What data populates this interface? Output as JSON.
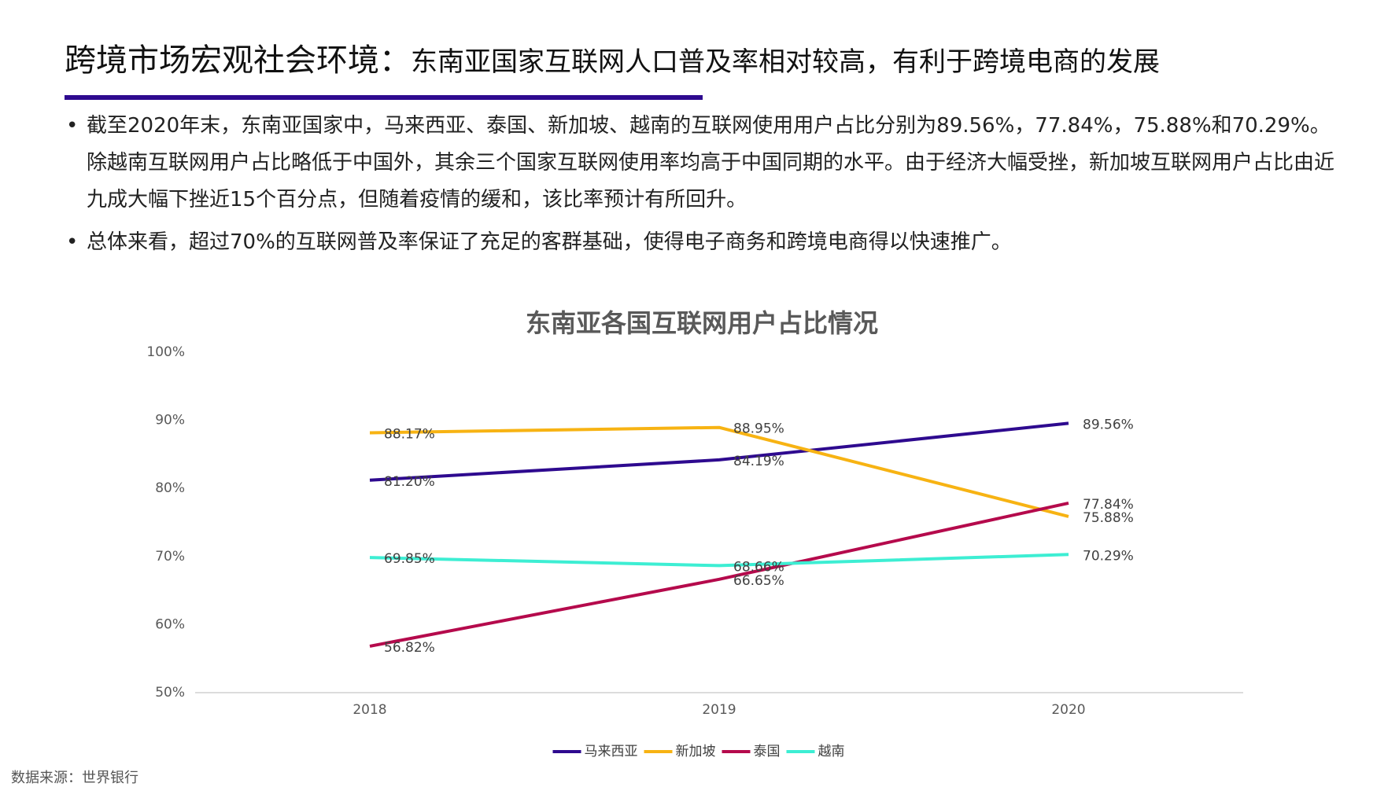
{
  "header": {
    "title_main": "跨境市场宏观社会环境：",
    "title_sub": "东南亚国家互联网人口普及率相对较高，有利于跨境电商的发展"
  },
  "bullets": [
    "截至2020年末，东南亚国家中，马来西亚、泰国、新加坡、越南的互联网使用用户占比分别为89.56%，77.84%，75.88%和70.29%。除越南互联网用户占比略低于中国外，其余三个国家互联网使用率均高于中国同期的水平。由于经济大幅受挫，新加坡互联网用户占比由近九成大幅下挫近15个百分点，但随着疫情的缓和，该比率预计有所回升。",
    "总体来看，超过70%的互联网普及率保证了充足的客群基础，使得电子商务和跨境电商得以快速推广。"
  ],
  "chart_data": {
    "type": "line",
    "title": "东南亚各国互联网用户占比情况",
    "categories": [
      "2018",
      "2019",
      "2020"
    ],
    "series": [
      {
        "name": "马来西亚",
        "color": "#2e0a8f",
        "values": [
          81.2,
          84.19,
          89.56
        ],
        "value_labels": [
          "81.20%",
          "84.19%",
          "89.56%"
        ]
      },
      {
        "name": "新加坡",
        "color": "#f7b313",
        "values": [
          88.17,
          88.95,
          75.88
        ],
        "value_labels": [
          "88.17%",
          "88.95%",
          "75.88%"
        ]
      },
      {
        "name": "泰国",
        "color": "#b50a4c",
        "values": [
          56.82,
          66.65,
          77.84
        ],
        "value_labels": [
          "56.82%",
          "66.65%",
          "77.84%"
        ]
      },
      {
        "name": "越南",
        "color": "#3deed3",
        "values": [
          69.85,
          68.66,
          70.29
        ],
        "value_labels": [
          "69.85%",
          "68.66%",
          "70.29%"
        ]
      }
    ],
    "ylim": [
      50,
      100
    ],
    "yticks": [
      {
        "value": 50,
        "label": "50%"
      },
      {
        "value": 60,
        "label": "60%"
      },
      {
        "value": 70,
        "label": "70%"
      },
      {
        "value": 80,
        "label": "80%"
      },
      {
        "value": 90,
        "label": "90%"
      },
      {
        "value": 100,
        "label": "100%"
      }
    ],
    "legend": "bottom"
  },
  "source": "数据来源：世界银行"
}
